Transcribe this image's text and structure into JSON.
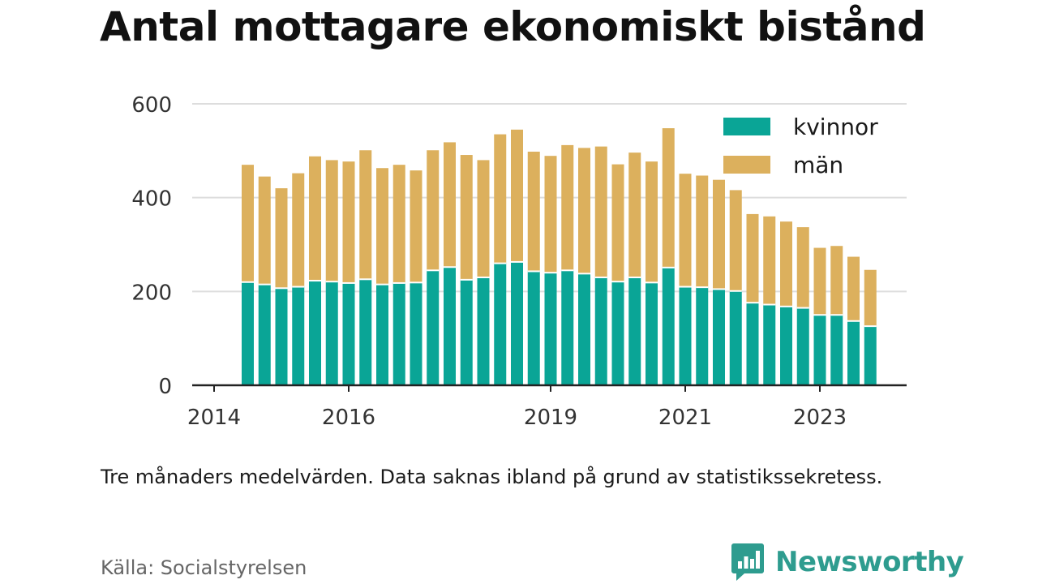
{
  "title": "Antal mottagare ekonomiskt bistånd",
  "note": "Tre månaders medelvärden. Data saknas ibland på grund av statistikssekretess.",
  "source": "Källa: Socialstyrelsen",
  "brand": {
    "name": "Newsworthy",
    "color": "#2e9c8f",
    "icon": "bar-chart-speech-bubble-icon"
  },
  "colors": {
    "kvinnor": "#0aa596",
    "man": "#dcb05d",
    "grid": "#dddddd",
    "axis": "#222222",
    "tick_text": "#333333"
  },
  "chart_data": {
    "type": "bar",
    "stacked": true,
    "grid": true,
    "legend_position": "top-right",
    "ylim": [
      0,
      600
    ],
    "yticks": [
      0,
      200,
      400,
      600
    ],
    "xticks": [
      "2014",
      "2016",
      "2019",
      "2021",
      "2023"
    ],
    "x": [
      "2014-06",
      "2014-09",
      "2014-12",
      "2015-03",
      "2015-06",
      "2015-09",
      "2015-12",
      "2016-03",
      "2016-06",
      "2016-09",
      "2016-12",
      "2017-03",
      "2017-06",
      "2017-09",
      "2017-12",
      "2018-03",
      "2018-06",
      "2018-09",
      "2018-12",
      "2019-03",
      "2019-06",
      "2019-09",
      "2019-12",
      "2020-03",
      "2020-06",
      "2020-09",
      "2020-12",
      "2021-03",
      "2021-06",
      "2021-09",
      "2021-12",
      "2022-03",
      "2022-06",
      "2022-09",
      "2022-12",
      "2023-03",
      "2023-06",
      "2023-09"
    ],
    "series": [
      {
        "name": "kvinnor",
        "values": [
          220,
          215,
          207,
          210,
          223,
          221,
          218,
          226,
          215,
          218,
          219,
          245,
          252,
          225,
          230,
          260,
          263,
          243,
          240,
          245,
          238,
          230,
          221,
          230,
          219,
          251,
          210,
          209,
          205,
          201,
          176,
          172,
          168,
          165,
          150,
          150,
          137,
          126
        ]
      },
      {
        "name": "män",
        "values": [
          250,
          230,
          213,
          242,
          265,
          259,
          259,
          275,
          248,
          252,
          239,
          256,
          266,
          266,
          250,
          275,
          282,
          255,
          249,
          267,
          268,
          279,
          250,
          266,
          258,
          297,
          241,
          238,
          233,
          215,
          189,
          188,
          181,
          172,
          143,
          147,
          137,
          120
        ]
      }
    ]
  }
}
